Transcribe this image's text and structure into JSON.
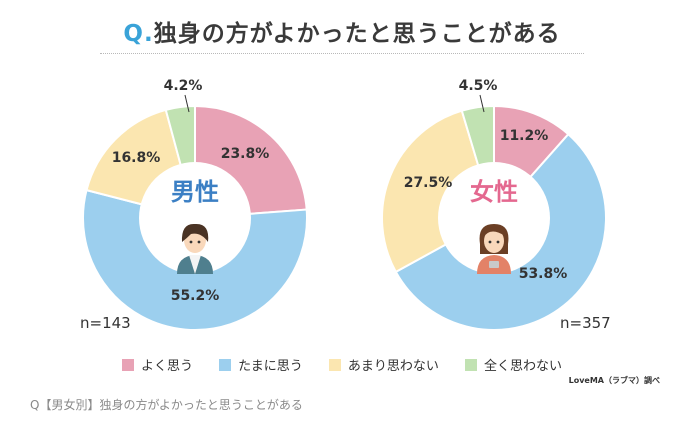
{
  "title": {
    "q": "Q.",
    "text": "独身の方がよかったと思うことがある"
  },
  "colors": {
    "yoku": "#e8a2b5",
    "tama": "#9ccfee",
    "amari": "#fbe6b0",
    "mattaku": "#c1e2b2",
    "male_label": "#3b7fc4",
    "female_label": "#e4688f"
  },
  "chart_data": [
    {
      "type": "pie",
      "title": "男性",
      "n_label": "n=143",
      "categories": [
        "よく思う",
        "たまに思う",
        "あまり思わない",
        "全く思わない"
      ],
      "values": [
        23.8,
        55.2,
        16.8,
        4.2
      ],
      "labels": [
        "23.8%",
        "55.2%",
        "16.8%",
        "4.2%"
      ]
    },
    {
      "type": "pie",
      "title": "女性",
      "n_label": "n=357",
      "categories": [
        "よく思う",
        "たまに思う",
        "あまり思わない",
        "全く思わない"
      ],
      "values": [
        11.2,
        53.8,
        27.5,
        4.5
      ],
      "labels": [
        "11.2%",
        "53.8%",
        "27.5%",
        "4.5%"
      ]
    }
  ],
  "legend": [
    "よく思う",
    "たまに思う",
    "あまり思わない",
    "全く思わない"
  ],
  "source": "LoveMA（ラブマ）調べ",
  "caption": "Q【男女別】独身の方がよかったと思うことがある"
}
